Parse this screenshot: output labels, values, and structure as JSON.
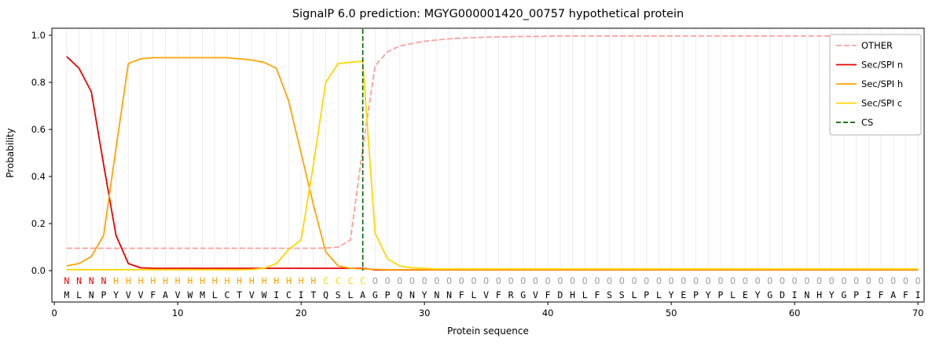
{
  "chart_data": {
    "type": "line",
    "title": "SignalP 6.0 prediction: MGYG000001420_00757 hypothetical protein",
    "xlabel": "Protein sequence",
    "ylabel": "Probability",
    "xlim": [
      -0.2,
      70.5
    ],
    "ylim": [
      -0.13,
      1.03
    ],
    "xticks": [
      0,
      10,
      20,
      30,
      40,
      50,
      60,
      70
    ],
    "yticks": [
      0.0,
      0.2,
      0.4,
      0.6,
      0.8,
      1.0
    ],
    "grid": "vertical-per-residue",
    "legend_position": "upper-right",
    "x": [
      1,
      2,
      3,
      4,
      5,
      6,
      7,
      8,
      9,
      10,
      11,
      12,
      13,
      14,
      15,
      16,
      17,
      18,
      19,
      20,
      21,
      22,
      23,
      24,
      25,
      26,
      27,
      28,
      29,
      30,
      31,
      32,
      33,
      34,
      35,
      36,
      37,
      38,
      39,
      40,
      41,
      42,
      43,
      44,
      45,
      46,
      47,
      48,
      49,
      50,
      51,
      52,
      53,
      54,
      55,
      56,
      57,
      58,
      59,
      60,
      61,
      62,
      63,
      64,
      65,
      66,
      67,
      68,
      69,
      70
    ],
    "series": [
      {
        "name": "OTHER",
        "color": "#ff9e9e",
        "dash": "7,3",
        "values": [
          0.095,
          0.095,
          0.095,
          0.095,
          0.095,
          0.095,
          0.095,
          0.095,
          0.095,
          0.095,
          0.095,
          0.095,
          0.095,
          0.095,
          0.095,
          0.095,
          0.095,
          0.095,
          0.095,
          0.095,
          0.095,
          0.096,
          0.1,
          0.13,
          0.52,
          0.87,
          0.93,
          0.955,
          0.965,
          0.975,
          0.98,
          0.985,
          0.988,
          0.99,
          0.992,
          0.993,
          0.994,
          0.995,
          0.995,
          0.996,
          0.997,
          0.997,
          0.997,
          0.997,
          0.997,
          0.997,
          0.997,
          0.997,
          0.997,
          0.997,
          0.997,
          0.997,
          0.997,
          0.997,
          0.997,
          0.997,
          0.997,
          0.997,
          0.997,
          0.997,
          0.997,
          0.997,
          0.997,
          0.997,
          0.997,
          0.997,
          0.997,
          0.997,
          0.997,
          0.997
        ]
      },
      {
        "name": "Sec/SPI n",
        "color": "#e60000",
        "dash": null,
        "values": [
          0.91,
          0.86,
          0.76,
          0.45,
          0.15,
          0.03,
          0.012,
          0.01,
          0.01,
          0.01,
          0.01,
          0.01,
          0.01,
          0.01,
          0.01,
          0.01,
          0.01,
          0.01,
          0.01,
          0.01,
          0.01,
          0.01,
          0.01,
          0.01,
          0.01,
          0.003,
          0.003,
          0.003,
          0.003,
          0.003,
          0.003,
          0.003,
          0.003,
          0.003,
          0.003,
          0.003,
          0.003,
          0.003,
          0.003,
          0.003,
          0.003,
          0.003,
          0.003,
          0.003,
          0.003,
          0.003,
          0.003,
          0.003,
          0.003,
          0.003,
          0.003,
          0.003,
          0.003,
          0.003,
          0.003,
          0.003,
          0.003,
          0.003,
          0.003,
          0.003,
          0.003,
          0.003,
          0.003,
          0.003,
          0.003,
          0.003,
          0.003,
          0.003,
          0.003,
          0.003
        ]
      },
      {
        "name": "Sec/SPI h",
        "color": "#ffa500",
        "dash": null,
        "values": [
          0.02,
          0.03,
          0.06,
          0.15,
          0.52,
          0.88,
          0.9,
          0.905,
          0.905,
          0.905,
          0.905,
          0.905,
          0.905,
          0.905,
          0.9,
          0.895,
          0.885,
          0.86,
          0.72,
          0.5,
          0.28,
          0.08,
          0.02,
          0.01,
          0.007,
          0.005,
          0.004,
          0.004,
          0.004,
          0.004,
          0.004,
          0.004,
          0.004,
          0.004,
          0.004,
          0.004,
          0.004,
          0.004,
          0.004,
          0.004,
          0.004,
          0.004,
          0.004,
          0.004,
          0.004,
          0.004,
          0.004,
          0.004,
          0.004,
          0.004,
          0.004,
          0.004,
          0.004,
          0.004,
          0.004,
          0.004,
          0.004,
          0.004,
          0.004,
          0.004,
          0.004,
          0.004,
          0.004,
          0.004,
          0.004,
          0.004,
          0.004,
          0.004,
          0.004,
          0.004
        ]
      },
      {
        "name": "Sec/SPI c",
        "color": "#ffd700",
        "dash": null,
        "values": [
          0.004,
          0.004,
          0.004,
          0.004,
          0.004,
          0.004,
          0.004,
          0.004,
          0.004,
          0.004,
          0.004,
          0.004,
          0.004,
          0.004,
          0.004,
          0.005,
          0.01,
          0.03,
          0.09,
          0.13,
          0.45,
          0.8,
          0.88,
          0.885,
          0.89,
          0.16,
          0.05,
          0.02,
          0.012,
          0.01,
          0.007,
          0.007,
          0.007,
          0.007,
          0.007,
          0.007,
          0.007,
          0.007,
          0.007,
          0.007,
          0.007,
          0.007,
          0.007,
          0.007,
          0.007,
          0.007,
          0.007,
          0.007,
          0.007,
          0.007,
          0.007,
          0.007,
          0.007,
          0.007,
          0.007,
          0.007,
          0.007,
          0.007,
          0.007,
          0.007,
          0.007,
          0.007,
          0.007,
          0.007,
          0.007,
          0.007,
          0.007,
          0.007,
          0.007,
          0.007
        ]
      }
    ],
    "cs": {
      "name": "CS",
      "position": 25,
      "color": "#006400",
      "dash": "6,3"
    },
    "sequence": "MLNPYVVFAVWMLCTVWICITQSLAGPQNYNNFLVFRGVFDHLFSSLPLYEPYPLEYGDINHYGPIFAFI",
    "states": "NNNNHHHHHHHHHHHHHHHHHCCCCOOOOOOOOOOOOOOOOOOOOOOOOOOOOOOOOOOOOOOOOOOOOO",
    "state_colors": {
      "N": "#e60000",
      "H": "#ffa500",
      "C": "#ffd700",
      "O": "#9e9e9e"
    }
  }
}
